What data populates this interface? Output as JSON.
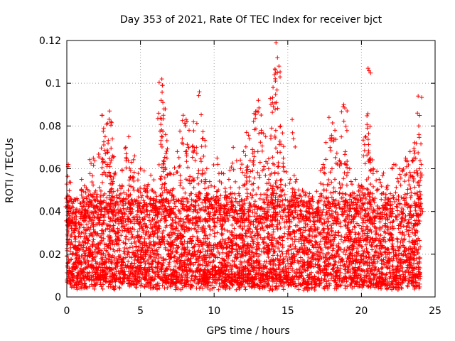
{
  "chart_data": {
    "type": "scatter",
    "title": "Day 353 of 2021, Rate Of TEC Index for receiver bjct",
    "xlabel": "GPS time / hours",
    "ylabel": "ROTI / TECUs",
    "xlim": [
      0,
      25
    ],
    "ylim": [
      0,
      0.12
    ],
    "x_ticks": [
      "0",
      "5",
      "10",
      "15",
      "20",
      "25"
    ],
    "y_ticks": [
      "0",
      "0.02",
      "0.04",
      "0.06",
      "0.08",
      "0.1",
      "0.12"
    ],
    "grid": true,
    "marker": "+",
    "color": "#ff0000",
    "series": [
      {
        "points": [
          [
            0.1,
            0.062
          ],
          [
            0.15,
            0.047
          ],
          [
            0.3,
            0.035
          ],
          [
            0.6,
            0.028
          ],
          [
            1.0,
            0.055
          ],
          [
            1.2,
            0.052
          ],
          [
            1.6,
            0.048
          ],
          [
            1.8,
            0.065
          ],
          [
            2.1,
            0.045
          ],
          [
            2.4,
            0.085
          ],
          [
            2.5,
            0.079
          ],
          [
            2.6,
            0.075
          ],
          [
            2.8,
            0.072
          ],
          [
            2.9,
            0.087
          ],
          [
            3.0,
            0.082
          ],
          [
            3.1,
            0.066
          ],
          [
            3.3,
            0.058
          ],
          [
            3.6,
            0.052
          ],
          [
            4.0,
            0.07
          ],
          [
            4.2,
            0.075
          ],
          [
            4.4,
            0.063
          ],
          [
            4.6,
            0.066
          ],
          [
            5.0,
            0.06
          ],
          [
            5.3,
            0.052
          ],
          [
            5.7,
            0.057
          ],
          [
            6.0,
            0.045
          ],
          [
            6.4,
            0.092
          ],
          [
            6.45,
            0.102
          ],
          [
            6.5,
            0.099
          ],
          [
            6.6,
            0.088
          ],
          [
            6.7,
            0.076
          ],
          [
            6.8,
            0.065
          ],
          [
            7.0,
            0.058
          ],
          [
            7.5,
            0.068
          ],
          [
            7.9,
            0.085
          ],
          [
            8.1,
            0.083
          ],
          [
            8.3,
            0.078
          ],
          [
            8.6,
            0.082
          ],
          [
            8.8,
            0.07
          ],
          [
            9.0,
            0.096
          ],
          [
            9.2,
            0.074
          ],
          [
            9.5,
            0.06
          ],
          [
            9.8,
            0.052
          ],
          [
            10.2,
            0.065
          ],
          [
            10.5,
            0.058
          ],
          [
            11.0,
            0.055
          ],
          [
            11.3,
            0.07
          ],
          [
            11.8,
            0.06
          ],
          [
            12.0,
            0.068
          ],
          [
            12.2,
            0.077
          ],
          [
            12.4,
            0.074
          ],
          [
            12.6,
            0.069
          ],
          [
            12.9,
            0.087
          ],
          [
            13.0,
            0.092
          ],
          [
            13.2,
            0.078
          ],
          [
            13.5,
            0.075
          ],
          [
            13.7,
            0.06
          ],
          [
            13.9,
            0.079
          ],
          [
            14.0,
            0.098
          ],
          [
            14.1,
            0.104
          ],
          [
            14.2,
            0.119
          ],
          [
            14.3,
            0.112
          ],
          [
            14.4,
            0.108
          ],
          [
            14.5,
            0.08
          ],
          [
            14.7,
            0.065
          ],
          [
            15.0,
            0.045
          ],
          [
            15.3,
            0.083
          ],
          [
            15.6,
            0.055
          ],
          [
            16.0,
            0.05
          ],
          [
            16.5,
            0.045
          ],
          [
            17.0,
            0.04
          ],
          [
            17.4,
            0.062
          ],
          [
            17.8,
            0.084
          ],
          [
            18.0,
            0.06
          ],
          [
            18.2,
            0.078
          ],
          [
            18.5,
            0.064
          ],
          [
            18.75,
            0.089
          ],
          [
            18.8,
            0.09
          ],
          [
            18.9,
            0.068
          ],
          [
            19.2,
            0.06
          ],
          [
            19.6,
            0.055
          ],
          [
            20.0,
            0.052
          ],
          [
            20.3,
            0.075
          ],
          [
            20.4,
            0.079
          ],
          [
            20.45,
            0.107
          ],
          [
            20.6,
            0.065
          ],
          [
            20.8,
            0.06
          ],
          [
            21.2,
            0.055
          ],
          [
            21.5,
            0.058
          ],
          [
            21.8,
            0.052
          ],
          [
            22.2,
            0.062
          ],
          [
            22.6,
            0.06
          ],
          [
            23.0,
            0.065
          ],
          [
            23.3,
            0.068
          ],
          [
            23.5,
            0.064
          ],
          [
            23.8,
            0.086
          ],
          [
            23.85,
            0.094
          ],
          [
            23.9,
            0.076
          ],
          [
            23.95,
            0.06
          ]
        ],
        "dense_band": {
          "description": "dense cloud of points covering the full time span",
          "x_range": [
            0,
            24
          ],
          "y_range": [
            0.003,
            0.045
          ]
        }
      }
    ]
  }
}
